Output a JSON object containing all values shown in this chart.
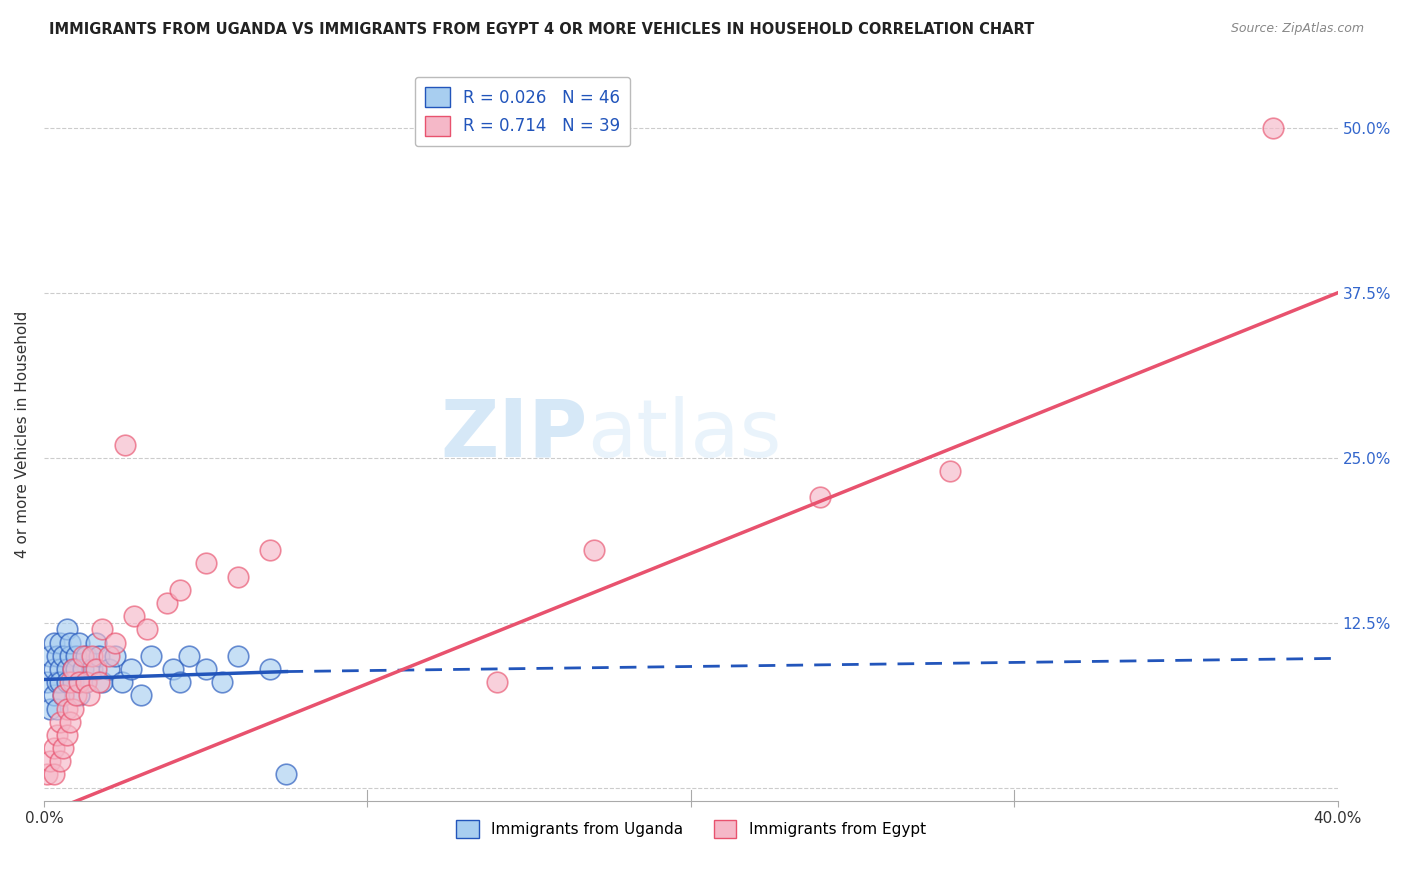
{
  "title": "IMMIGRANTS FROM UGANDA VS IMMIGRANTS FROM EGYPT 4 OR MORE VEHICLES IN HOUSEHOLD CORRELATION CHART",
  "source": "Source: ZipAtlas.com",
  "ylabel": "4 or more Vehicles in Household",
  "legend_uganda": "Immigrants from Uganda",
  "legend_egypt": "Immigrants from Egypt",
  "R_uganda": 0.026,
  "N_uganda": 46,
  "R_egypt": 0.714,
  "N_egypt": 39,
  "color_uganda": "#a8cef0",
  "color_egypt": "#f5b8c8",
  "trendline_uganda_color": "#2255bb",
  "trendline_egypt_color": "#e8526e",
  "xlim": [
    0.0,
    0.4
  ],
  "ylim": [
    -0.01,
    0.545
  ],
  "yticks_right": [
    0.0,
    0.125,
    0.25,
    0.375,
    0.5
  ],
  "ytick_labels_right": [
    "",
    "12.5%",
    "25.0%",
    "37.5%",
    "50.0%"
  ],
  "xtick_labels": [
    "0.0%",
    "",
    "",
    "",
    "40.0%"
  ],
  "xticks": [
    0.0,
    0.1,
    0.2,
    0.3,
    0.4
  ],
  "grid_color": "#cccccc",
  "background_color": "#ffffff",
  "uganda_x": [
    0.001,
    0.002,
    0.002,
    0.003,
    0.003,
    0.003,
    0.004,
    0.004,
    0.004,
    0.005,
    0.005,
    0.005,
    0.006,
    0.006,
    0.007,
    0.007,
    0.007,
    0.008,
    0.008,
    0.009,
    0.009,
    0.01,
    0.01,
    0.011,
    0.011,
    0.012,
    0.013,
    0.013,
    0.015,
    0.016,
    0.017,
    0.018,
    0.02,
    0.022,
    0.024,
    0.027,
    0.03,
    0.033,
    0.04,
    0.042,
    0.045,
    0.05,
    0.055,
    0.06,
    0.07,
    0.075
  ],
  "uganda_y": [
    0.08,
    0.1,
    0.06,
    0.09,
    0.07,
    0.11,
    0.08,
    0.1,
    0.06,
    0.09,
    0.11,
    0.08,
    0.1,
    0.07,
    0.12,
    0.09,
    0.08,
    0.1,
    0.11,
    0.09,
    0.08,
    0.1,
    0.09,
    0.11,
    0.07,
    0.09,
    0.1,
    0.08,
    0.09,
    0.11,
    0.1,
    0.08,
    0.09,
    0.1,
    0.08,
    0.09,
    0.07,
    0.1,
    0.09,
    0.08,
    0.1,
    0.09,
    0.08,
    0.1,
    0.09,
    0.01
  ],
  "egypt_x": [
    0.001,
    0.002,
    0.003,
    0.003,
    0.004,
    0.005,
    0.005,
    0.006,
    0.006,
    0.007,
    0.007,
    0.008,
    0.008,
    0.009,
    0.009,
    0.01,
    0.011,
    0.012,
    0.013,
    0.014,
    0.015,
    0.016,
    0.017,
    0.018,
    0.02,
    0.022,
    0.025,
    0.028,
    0.032,
    0.038,
    0.042,
    0.05,
    0.06,
    0.07,
    0.14,
    0.17,
    0.24,
    0.28,
    0.38
  ],
  "egypt_y": [
    0.01,
    0.02,
    0.03,
    0.01,
    0.04,
    0.02,
    0.05,
    0.03,
    0.07,
    0.04,
    0.06,
    0.05,
    0.08,
    0.06,
    0.09,
    0.07,
    0.08,
    0.1,
    0.08,
    0.07,
    0.1,
    0.09,
    0.08,
    0.12,
    0.1,
    0.11,
    0.26,
    0.13,
    0.12,
    0.14,
    0.15,
    0.17,
    0.16,
    0.18,
    0.08,
    0.18,
    0.22,
    0.24,
    0.5
  ],
  "trendline_egypt_x0": 0.0,
  "trendline_egypt_y0": -0.02,
  "trendline_egypt_x1": 0.4,
  "trendline_egypt_y1": 0.375,
  "trendline_uganda_x0": 0.0,
  "trendline_uganda_y0": 0.082,
  "trendline_uganda_x1": 0.075,
  "trendline_uganda_y1": 0.088,
  "trendline_uganda_dash_x0": 0.075,
  "trendline_uganda_dash_y0": 0.088,
  "trendline_uganda_dash_x1": 0.4,
  "trendline_uganda_dash_y1": 0.098
}
